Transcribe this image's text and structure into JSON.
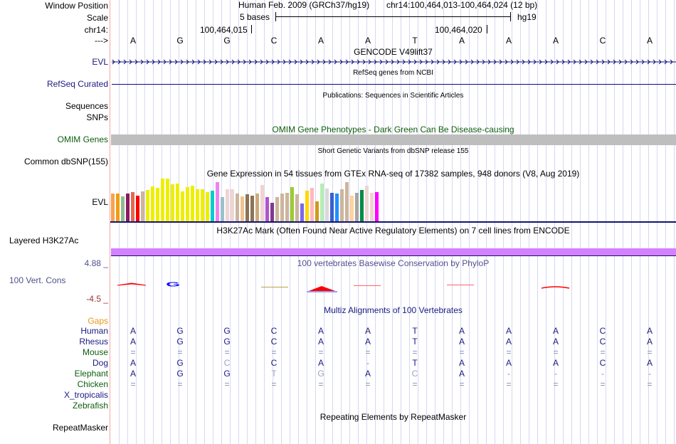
{
  "header": {
    "window_position_label": "Window Position",
    "scale_label": "Scale",
    "chrom_label": "chr14:",
    "strand_label": "--->",
    "assembly": "Human Feb. 2009 (GRCh37/hg19)",
    "position": "chr14:100,464,013-100,464,024 (12 bp)",
    "scale_text": "5 bases",
    "scale_db": "hg19",
    "coord_1": "100,464,015",
    "coord_2": "100,464,020",
    "bases": [
      "A",
      "G",
      "G",
      "C",
      "A",
      "A",
      "T",
      "A",
      "A",
      "A",
      "C",
      "A"
    ]
  },
  "tracks": {
    "gencode": {
      "title": "GENCODE V49lift37",
      "label": "EVL"
    },
    "refseq": {
      "title": "RefSeq genes from NCBI",
      "label": "RefSeq Curated"
    },
    "publications": {
      "title": "Publications: Sequences in Scientific Articles",
      "label_1": "Sequences",
      "label_2": "SNPs"
    },
    "omim": {
      "title": "OMIM Gene Phenotypes - Dark Green Can Be Disease-causing",
      "label": "OMIM Genes"
    },
    "dbsnp": {
      "title": "Short Genetic Variants from dbSNP release 155",
      "label": "Common dbSNP(155)"
    },
    "gtex": {
      "title": "Gene Expression in 54 tissues from GTEx RNA-seq of 17382 samples, 948 donors (V8, Aug 2019)",
      "label": "EVL"
    },
    "h3k27ac": {
      "title": "H3K27Ac Mark (Often Found Near Active Regulatory Elements) on 7 cell lines from ENCODE",
      "label": "Layered H3K27Ac"
    },
    "phylop": {
      "title": "100 vertebrates Basewise Conservation by PhyloP",
      "label": "100 Vert. Cons",
      "max": "4.88 _",
      "min": "-4.5 _"
    },
    "multiz": {
      "title": "Multiz Alignments of 100 Vertebrates",
      "gaps_label": "Gaps"
    },
    "repeatmasker": {
      "title": "Repeating Elements by RepeatMasker",
      "label": "RepeatMasker"
    }
  },
  "alignment": [
    {
      "species": "Human",
      "color": "navy",
      "bases": [
        "A",
        "G",
        "G",
        "C",
        "A",
        "A",
        "T",
        "A",
        "A",
        "A",
        "C",
        "A"
      ]
    },
    {
      "species": "Rhesus",
      "color": "navy",
      "bases": [
        "A",
        "G",
        "G",
        "C",
        "A",
        "A",
        "T",
        "A",
        "A",
        "A",
        "C",
        "A"
      ]
    },
    {
      "species": "Mouse",
      "color": "dgreen",
      "bases": [
        "=",
        "=",
        "=",
        "=",
        "=",
        "=",
        "=",
        "=",
        "=",
        "=",
        "=",
        "="
      ]
    },
    {
      "species": "Dog",
      "color": "navy",
      "bases": [
        "A",
        "G",
        "C",
        "C",
        "A",
        "-",
        "T",
        "A",
        "A",
        "A",
        "C",
        "A"
      ]
    },
    {
      "species": "Elephant",
      "color": "dgreen",
      "bases": [
        "A",
        "G",
        "G",
        "T",
        "G",
        "A",
        "C",
        "A",
        "-",
        "-",
        "-",
        "-"
      ]
    },
    {
      "species": "Chicken",
      "color": "dgreen",
      "bases": [
        "=",
        "=",
        "=",
        "=",
        "=",
        "=",
        "=",
        "=",
        "=",
        "=",
        "=",
        "="
      ]
    },
    {
      "species": "X_tropicalis",
      "color": "navy",
      "bases": []
    },
    {
      "species": "Zebrafish",
      "color": "dgreen",
      "bases": []
    }
  ],
  "chart_data": {
    "type": "bar",
    "title": "Gene Expression in 54 tissues from GTEx RNA-seq of 17382 samples, 948 donors (V8, Aug 2019)",
    "values": [
      115,
      115,
      103,
      115,
      121,
      106,
      124,
      130,
      145,
      139,
      177,
      177,
      154,
      157,
      124,
      142,
      148,
      133,
      133,
      121,
      127,
      163,
      100,
      133,
      133,
      115,
      103,
      112,
      106,
      115,
      151,
      100,
      76,
      100,
      115,
      118,
      142,
      112,
      73,
      127,
      139,
      82,
      157,
      136,
      118,
      115,
      133,
      163,
      106,
      118,
      130,
      148,
      118,
      121
    ],
    "colors": [
      "#f9a24f",
      "#f09d14",
      "#8fbc8f",
      "#8b1a5f",
      "#e8684f",
      "#ff0000",
      "#cdb59d",
      "#eeee00",
      "#eeee00",
      "#eeee00",
      "#eeee00",
      "#eeee00",
      "#eeee00",
      "#eeee00",
      "#eeee00",
      "#eeee00",
      "#eeee00",
      "#eeee00",
      "#eeee00",
      "#eeee00",
      "#00cdcd",
      "#ee82ee",
      "#9ac0cd",
      "#eed5d2",
      "#eed5d2",
      "#cdb59d",
      "#eec591",
      "#8b7355",
      "#8b7355",
      "#cdaa7d",
      "#eed5d2",
      "#b452cd",
      "#7d3a8d",
      "#cdb59d",
      "#cdb59d",
      "#cdb59d",
      "#9acd32",
      "#cdb59d",
      "#7b68ee",
      "#ffd700",
      "#ffb6c1",
      "#cd9b1d",
      "#b4eeb4",
      "#d9d9d9",
      "#3a5fcd",
      "#1e90ff",
      "#cdb59d",
      "#cdb59d",
      "#ffd39b",
      "#a6a6a6",
      "#008b45",
      "#eed5d2",
      "#eed5d2",
      "#ff00ff"
    ],
    "ylim": [
      0,
      180
    ]
  }
}
